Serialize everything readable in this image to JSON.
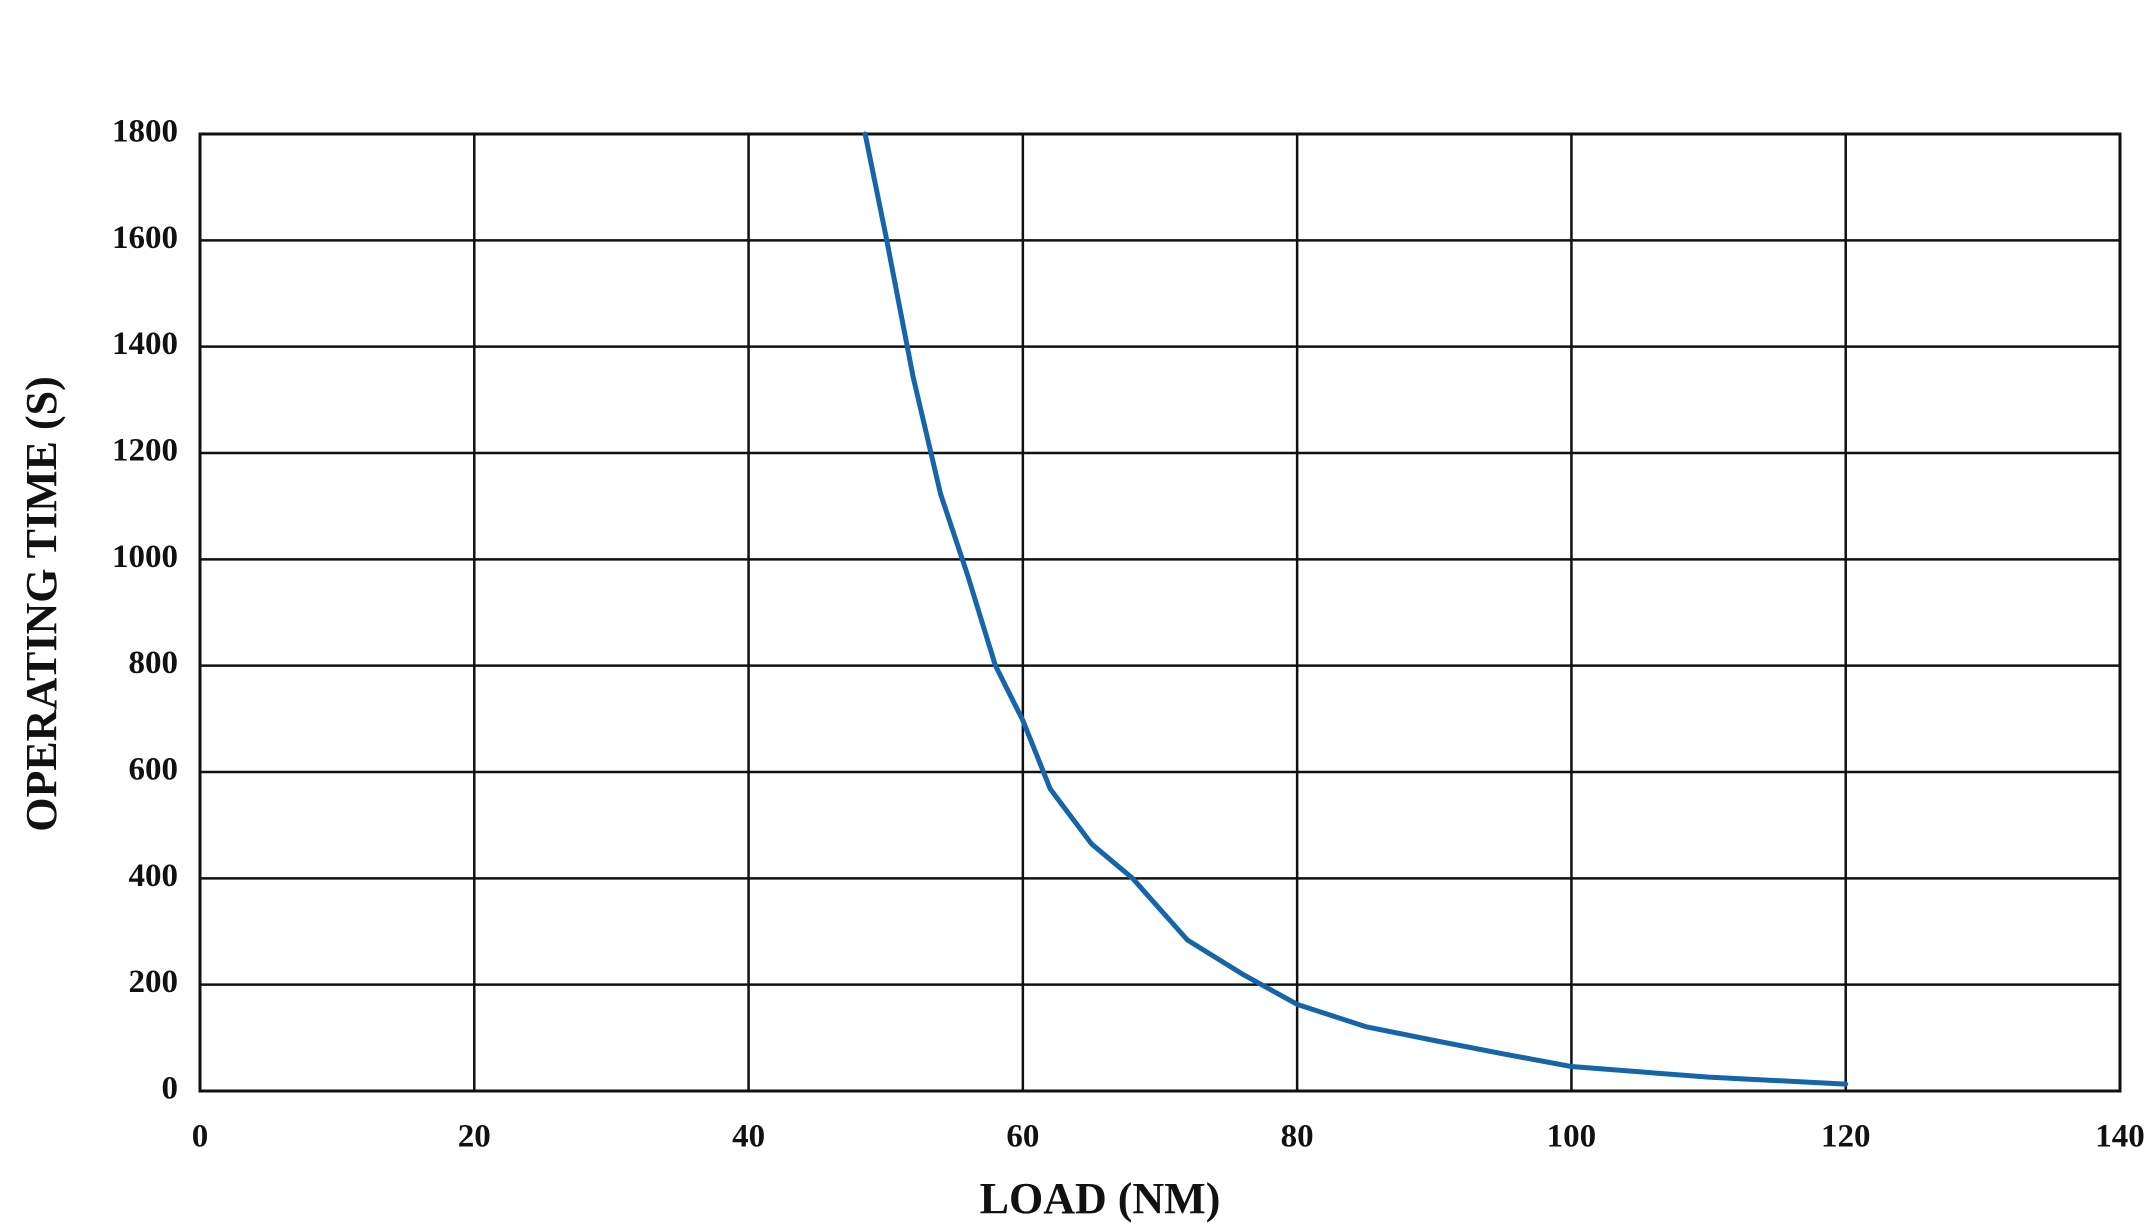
{
  "chart_data": {
    "type": "line",
    "x_label": "LOAD (NM)",
    "y_label": "OPERATING TIME (S)",
    "x": [
      48.5,
      50,
      52,
      54,
      56,
      58,
      60,
      62,
      65,
      68,
      72,
      76,
      80,
      85,
      90,
      95,
      100,
      110,
      120
    ],
    "series": [
      {
        "color": "#1565a8",
        "values": [
          1800,
          1610,
          1343,
          1123,
          968,
          800,
          697,
          568,
          465,
          400,
          284,
          220,
          163,
          121,
          95,
          70,
          46,
          26,
          13
        ]
      }
    ],
    "xlim": [
      0,
      140
    ],
    "xticks": [
      0,
      20,
      40,
      60,
      80,
      100,
      120,
      140
    ],
    "ylim": [
      0,
      1800
    ],
    "yticks": [
      0,
      200,
      400,
      600,
      800,
      1000,
      1200,
      1400,
      1600,
      1800
    ],
    "grid": true
  }
}
